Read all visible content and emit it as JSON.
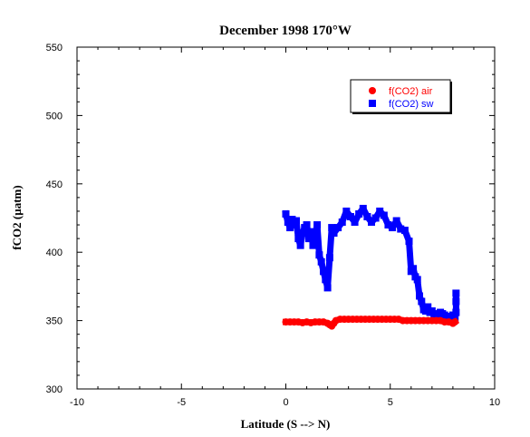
{
  "chart_data": {
    "type": "scatter",
    "title": "December 1998 170°W",
    "xlabel": "Latitude (S --> N)",
    "ylabel": "fCO2 (µatm)",
    "xlim": [
      -10,
      10
    ],
    "ylim": [
      300,
      550
    ],
    "xticks": [
      -10,
      -5,
      0,
      5,
      10
    ],
    "yticks": [
      300,
      350,
      400,
      450,
      500,
      550
    ],
    "grid": false,
    "legend_position": "top-right",
    "series": [
      {
        "name": "f(CO2) air",
        "color": "#ff0000",
        "marker": "circle",
        "x": [
          0.0,
          0.2,
          0.4,
          0.6,
          0.8,
          1.0,
          1.2,
          1.4,
          1.6,
          1.8,
          2.0,
          2.1,
          2.2,
          2.3,
          2.4,
          2.6,
          2.8,
          3.0,
          3.2,
          3.4,
          3.6,
          3.8,
          4.0,
          4.2,
          4.4,
          4.6,
          4.8,
          5.0,
          5.2,
          5.4,
          5.6,
          5.8,
          6.0,
          6.2,
          6.4,
          6.6,
          6.8,
          7.0,
          7.2,
          7.4,
          7.6,
          7.8,
          8.0,
          8.1
        ],
        "y": [
          349,
          349,
          349,
          349,
          348.5,
          349,
          348.5,
          349,
          349,
          349,
          348,
          347,
          346,
          348,
          350,
          351,
          351,
          351,
          351,
          351,
          351,
          351,
          351,
          351,
          351,
          351,
          351,
          351,
          351,
          351,
          350,
          350,
          350,
          350,
          350,
          350,
          350,
          350,
          350,
          350,
          349,
          349,
          348,
          349
        ]
      },
      {
        "name": "f(CO2) sw",
        "color": "#0000ff",
        "marker": "square",
        "x": [
          0.0,
          0.1,
          0.2,
          0.3,
          0.4,
          0.5,
          0.6,
          0.7,
          0.8,
          0.9,
          1.0,
          1.1,
          1.2,
          1.3,
          1.4,
          1.5,
          1.6,
          1.7,
          1.8,
          1.9,
          2.0,
          2.1,
          2.2,
          2.3,
          2.5,
          2.7,
          2.9,
          3.1,
          3.3,
          3.5,
          3.7,
          3.9,
          4.1,
          4.3,
          4.5,
          4.7,
          4.9,
          5.1,
          5.3,
          5.5,
          5.7,
          5.9,
          6.0,
          6.1,
          6.2,
          6.3,
          6.4,
          6.5,
          6.6,
          6.7,
          6.8,
          6.9,
          7.0,
          7.1,
          7.2,
          7.3,
          7.4,
          7.5,
          7.6,
          7.7,
          7.8,
          7.9,
          8.0,
          8.1,
          8.15,
          8.15,
          8.15
        ],
        "y": [
          428,
          422,
          418,
          424,
          420,
          423,
          410,
          405,
          414,
          418,
          420,
          410,
          415,
          405,
          412,
          420,
          398,
          393,
          386,
          380,
          374,
          396,
          418,
          414,
          418,
          422,
          430,
          426,
          422,
          428,
          432,
          426,
          422,
          425,
          430,
          427,
          420,
          418,
          423,
          417,
          416,
          408,
          386,
          388,
          382,
          380,
          368,
          364,
          358,
          357,
          360,
          356,
          357,
          355,
          354,
          353,
          356,
          355,
          354,
          353,
          352,
          351,
          354,
          352,
          356,
          364,
          370
        ]
      }
    ]
  }
}
